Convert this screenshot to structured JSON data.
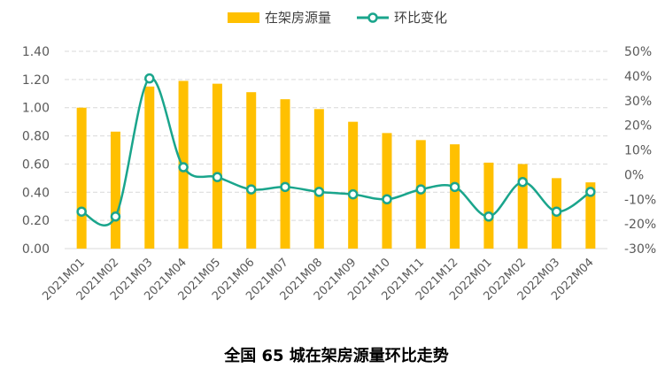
{
  "chart_data": {
    "type": "bar",
    "title": "全国 65 城在架房源量环比走势",
    "categories": [
      "2021M01",
      "2021M02",
      "2021M03",
      "2021M04",
      "2021M05",
      "2021M06",
      "2021M07",
      "2021M08",
      "2021M09",
      "2021M10",
      "2021M11",
      "2021M12",
      "2022M01",
      "2022M02",
      "2022M03",
      "2022M04"
    ],
    "series": [
      {
        "name": "在架房源量",
        "type": "bar",
        "axis": "left",
        "color": "#FFC000",
        "values": [
          1.0,
          0.83,
          1.15,
          1.19,
          1.17,
          1.11,
          1.06,
          0.99,
          0.9,
          0.82,
          0.77,
          0.74,
          0.61,
          0.6,
          0.5,
          0.47
        ]
      },
      {
        "name": "环比变化",
        "type": "line",
        "axis": "right",
        "color": "#1AA58C",
        "unit": "%",
        "values": [
          -15,
          -17,
          39,
          3,
          -1,
          -6,
          -5,
          -7,
          -8,
          -10,
          -6,
          -5,
          -17,
          -3,
          -15,
          -7
        ]
      }
    ],
    "y_left": {
      "min": 0,
      "max": 1.4,
      "step": 0.2,
      "ticks": [
        "0.00",
        "0.20",
        "0.40",
        "0.60",
        "0.80",
        "1.00",
        "1.20",
        "1.40"
      ]
    },
    "y_right": {
      "min": -30,
      "max": 50,
      "step": 10,
      "ticks": [
        "-30%",
        "-20%",
        "-10%",
        "0%",
        "10%",
        "20%",
        "30%",
        "40%",
        "50%"
      ]
    },
    "grid": true,
    "legend_position": "top-center"
  }
}
